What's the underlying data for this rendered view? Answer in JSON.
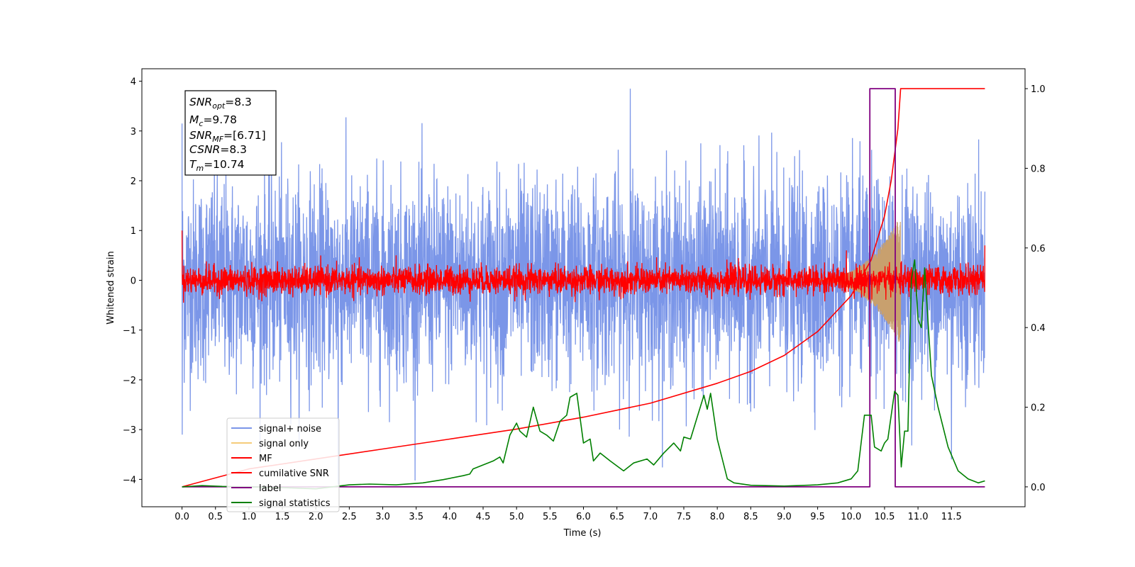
{
  "chart_data": {
    "type": "line",
    "xlabel": "Time (s)",
    "ylabel": "Whitened strain",
    "xlim": [
      -0.6,
      12.6
    ],
    "ylim": [
      -4.55,
      4.25
    ],
    "y2lim": [
      -0.05,
      1.05
    ],
    "x_ticks": [
      "0.0",
      "0.5",
      "1.0",
      "1.5",
      "2.0",
      "2.5",
      "3.0",
      "3.5",
      "4.0",
      "4.5",
      "5.0",
      "5.5",
      "6.0",
      "6.5",
      "7.0",
      "7.5",
      "8.0",
      "8.5",
      "9.0",
      "9.5",
      "10.0",
      "10.5",
      "11.0",
      "11.5"
    ],
    "y_ticks": [
      "4",
      "3",
      "2",
      "1",
      "0",
      "−1",
      "−2",
      "−3",
      "−4"
    ],
    "y2_ticks": [
      "1.0",
      "0.8",
      "0.6",
      "0.4",
      "0.2",
      "0.0"
    ],
    "grid": false,
    "legend_position": "lower-left",
    "info_box": {
      "snr_opt": {
        "main": "SNR",
        "sub": "opt",
        "rest": "=8.3"
      },
      "mc": {
        "main": "M",
        "sub": "c",
        "rest": "=9.78"
      },
      "snr_mf": {
        "main": "SNR",
        "sub": "MF",
        "rest": "=[6.71]"
      },
      "csnr": {
        "main": "CSNR",
        "sub": "",
        "rest": "=8.3"
      },
      "tm": {
        "main": "T",
        "sub": "m",
        "rest": "=10.74"
      }
    },
    "series": [
      {
        "name": "signal+ noise",
        "color": "#7b96e8",
        "axis": "left",
        "style": "white noise, std ≈ 1.0, spanning 0–12 s, extremes about −4.1 and 3.85"
      },
      {
        "name": "signal only",
        "color": "#f5cc7a",
        "axis": "left",
        "style": "chirp growing to amplitude ≈ 1.3 at merger ≈ 10.74 s"
      },
      {
        "name": "MF",
        "color": "#ff0000",
        "axis": "left",
        "style": "noise, std ≈ 0.15, with spike ≈ 1.0 at t = 0"
      },
      {
        "name": "cumilative SNR",
        "color": "#ff0000",
        "axis": "right",
        "x": [
          0.0,
          1.0,
          2.0,
          3.0,
          4.0,
          5.0,
          6.0,
          7.0,
          8.0,
          8.5,
          9.0,
          9.5,
          10.0,
          10.3,
          10.5,
          10.6,
          10.7,
          10.74,
          12.0
        ],
        "y": [
          0.0,
          0.045,
          0.07,
          0.095,
          0.12,
          0.145,
          0.175,
          0.21,
          0.26,
          0.29,
          0.33,
          0.39,
          0.48,
          0.57,
          0.68,
          0.77,
          0.9,
          1.0,
          1.0
        ]
      },
      {
        "name": "label",
        "color": "#800080",
        "axis": "right",
        "x": [
          0.0,
          10.28,
          10.28,
          10.66,
          10.66,
          12.0
        ],
        "y": [
          0.0,
          0.0,
          1.0,
          1.0,
          0.0,
          0.0
        ]
      },
      {
        "name": "signal statistics",
        "color": "#008000",
        "axis": "right",
        "x": [
          0.0,
          0.3,
          0.6,
          1.0,
          1.5,
          2.0,
          2.5,
          2.8,
          3.2,
          3.6,
          3.9,
          4.2,
          4.3,
          4.35,
          4.5,
          4.65,
          4.75,
          4.8,
          4.9,
          5.0,
          5.05,
          5.15,
          5.25,
          5.35,
          5.45,
          5.55,
          5.65,
          5.75,
          5.8,
          5.9,
          6.0,
          6.1,
          6.15,
          6.25,
          6.4,
          6.6,
          6.75,
          6.95,
          7.05,
          7.2,
          7.35,
          7.45,
          7.5,
          7.6,
          7.7,
          7.8,
          7.85,
          7.9,
          8.0,
          8.15,
          8.25,
          8.5,
          9.0,
          9.5,
          9.8,
          10.0,
          10.1,
          10.2,
          10.3,
          10.35,
          10.45,
          10.5,
          10.55,
          10.65,
          10.7,
          10.75,
          10.8,
          10.85,
          10.9,
          10.95,
          11.0,
          11.05,
          11.1,
          11.2,
          11.3,
          11.45,
          11.6,
          11.75,
          11.9,
          12.0
        ],
        "y": [
          0.0,
          0.003,
          0.001,
          0.0,
          -0.002,
          -0.005,
          0.005,
          0.007,
          0.005,
          0.01,
          0.018,
          0.028,
          0.032,
          0.045,
          0.055,
          0.065,
          0.075,
          0.06,
          0.13,
          0.16,
          0.14,
          0.125,
          0.2,
          0.14,
          0.13,
          0.115,
          0.165,
          0.18,
          0.225,
          0.235,
          0.11,
          0.12,
          0.065,
          0.085,
          0.065,
          0.04,
          0.06,
          0.07,
          0.055,
          0.085,
          0.11,
          0.09,
          0.125,
          0.12,
          0.175,
          0.23,
          0.195,
          0.235,
          0.12,
          0.02,
          0.01,
          0.004,
          0.002,
          0.005,
          0.01,
          0.02,
          0.04,
          0.18,
          0.18,
          0.1,
          0.09,
          0.11,
          0.12,
          0.24,
          0.23,
          0.05,
          0.14,
          0.14,
          0.52,
          0.57,
          0.42,
          0.4,
          0.55,
          0.28,
          0.2,
          0.1,
          0.04,
          0.02,
          0.01,
          0.015
        ]
      }
    ]
  }
}
